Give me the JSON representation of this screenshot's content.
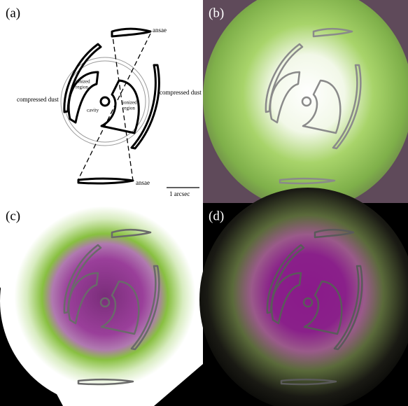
{
  "panels": [
    {
      "label": "(a)"
    },
    {
      "label": "(b)"
    },
    {
      "label": "(c)"
    },
    {
      "label": "(d)"
    }
  ],
  "annotations": {
    "ansae_top": "ansae",
    "ansae_bottom": "ansae",
    "dust_left": "compressed dust",
    "dust_right": "compressed dust",
    "ionized_left": [
      "ionized",
      "region"
    ],
    "ionized_right": [
      "ionized",
      "region"
    ],
    "cavity": "cavity",
    "scale_bar": "1 arcsec"
  }
}
